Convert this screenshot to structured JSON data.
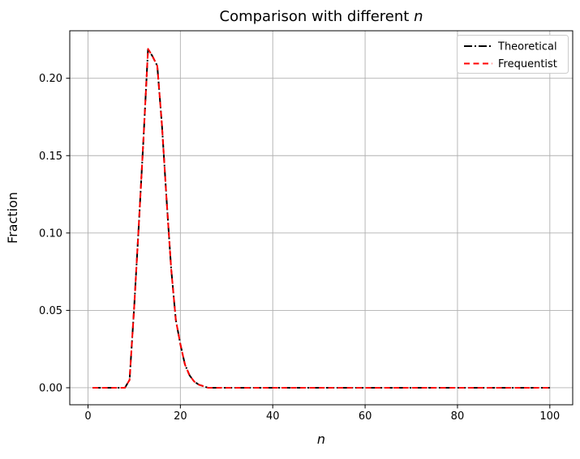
{
  "figure": {
    "titling": {
      "prefix": "Comparison with different ",
      "italic_var": "n"
    }
  },
  "chart_data": {
    "type": "line",
    "title": "Comparison with different n",
    "xlabel": "n",
    "ylabel": "Fraction",
    "grid": true,
    "legend_position": "upper right",
    "xlim": [
      -3.95,
      104.95
    ],
    "ylim": [
      -0.011,
      0.2307
    ],
    "x_ticks": [
      0,
      20,
      40,
      60,
      80,
      100
    ],
    "x_tick_labels": [
      "0",
      "20",
      "40",
      "60",
      "80",
      "100"
    ],
    "y_ticks": [
      0.0,
      0.05,
      0.1,
      0.15,
      0.2
    ],
    "y_tick_labels": [
      "0.00",
      "0.05",
      "0.10",
      "0.15",
      "0.20"
    ],
    "colors": {
      "grid": "#b0b0b0",
      "spine": "#000000",
      "legend_border": "#cccccc"
    },
    "x": [
      1,
      2,
      3,
      4,
      5,
      6,
      7,
      8,
      9,
      10,
      11,
      12,
      13,
      14,
      15,
      16,
      17,
      18,
      19,
      20,
      21,
      22,
      23,
      24,
      25,
      26,
      27,
      28,
      29,
      30,
      31,
      32,
      33,
      34,
      35,
      36,
      37,
      38,
      39,
      40,
      41,
      42,
      43,
      44,
      45,
      46,
      47,
      48,
      49,
      50,
      51,
      52,
      53,
      54,
      55,
      56,
      57,
      58,
      59,
      60,
      61,
      62,
      63,
      64,
      65,
      66,
      67,
      68,
      69,
      70,
      71,
      72,
      73,
      74,
      75,
      76,
      77,
      78,
      79,
      80,
      81,
      82,
      83,
      84,
      85,
      86,
      87,
      88,
      89,
      90,
      91,
      92,
      93,
      94,
      95,
      96,
      97,
      98,
      99,
      100
    ],
    "series": [
      {
        "name": "Theoretical",
        "color": "#000000",
        "linestyle": "dashdot",
        "values": [
          0,
          0,
          0,
          0,
          0,
          0,
          0,
          0,
          0.005,
          0.052,
          0.105,
          0.16,
          0.219,
          0.214,
          0.208,
          0.17,
          0.122,
          0.077,
          0.044,
          0.028,
          0.015,
          0.008,
          0.004,
          0.002,
          0.001,
          0,
          0,
          0,
          0,
          0,
          0,
          0,
          0,
          0,
          0,
          0,
          0,
          0,
          0,
          0,
          0,
          0,
          0,
          0,
          0,
          0,
          0,
          0,
          0,
          0,
          0,
          0,
          0,
          0,
          0,
          0,
          0,
          0,
          0,
          0,
          0,
          0,
          0,
          0,
          0,
          0,
          0,
          0,
          0,
          0,
          0,
          0,
          0,
          0,
          0,
          0,
          0,
          0,
          0,
          0,
          0,
          0,
          0,
          0,
          0,
          0,
          0,
          0,
          0,
          0,
          0,
          0,
          0,
          0,
          0,
          0,
          0,
          0,
          0,
          0
        ]
      },
      {
        "name": "Frequentist",
        "color": "#ff0000",
        "linestyle": "dashed",
        "values": [
          0,
          0,
          0,
          0,
          0,
          0,
          0,
          0,
          0.005,
          0.052,
          0.105,
          0.16,
          0.219,
          0.214,
          0.208,
          0.17,
          0.122,
          0.077,
          0.044,
          0.028,
          0.015,
          0.008,
          0.004,
          0.002,
          0.001,
          0,
          0,
          0,
          0,
          0,
          0,
          0,
          0,
          0,
          0,
          0,
          0,
          0,
          0,
          0,
          0,
          0,
          0,
          0,
          0,
          0,
          0,
          0,
          0,
          0,
          0,
          0,
          0,
          0,
          0,
          0,
          0,
          0,
          0,
          0,
          0,
          0,
          0,
          0,
          0,
          0,
          0,
          0,
          0,
          0,
          0,
          0,
          0,
          0,
          0,
          0,
          0,
          0,
          0,
          0,
          0,
          0,
          0,
          0,
          0,
          0,
          0,
          0,
          0,
          0,
          0,
          0,
          0,
          0,
          0,
          0,
          0,
          0,
          0,
          0
        ]
      }
    ]
  }
}
